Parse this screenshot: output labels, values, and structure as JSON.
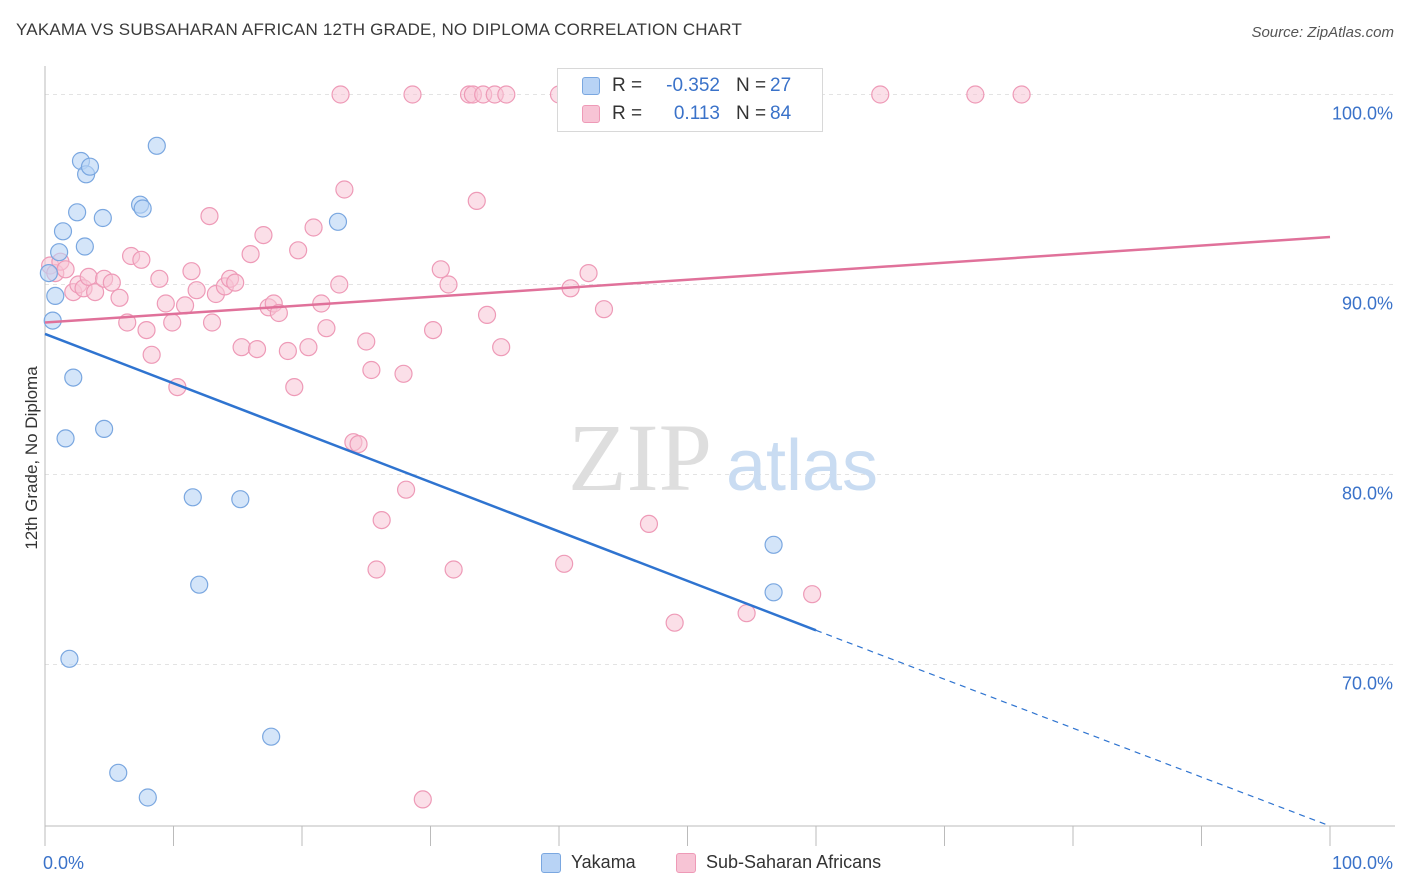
{
  "title": "YAKAMA VS SUBSAHARAN AFRICAN 12TH GRADE, NO DIPLOMA CORRELATION CHART",
  "source": "Source: ZipAtlas.com",
  "watermark": {
    "zip": "ZIP",
    "atlas": "atlas"
  },
  "colors": {
    "yakama_fill": "#b8d3f5",
    "yakama_stroke": "#7aa7e0",
    "yakama_line": "#2f74d0",
    "ssa_fill": "#f7c4d5",
    "ssa_stroke": "#ee9ab7",
    "ssa_line": "#e0719a",
    "value_text": "#3a72c9",
    "grid": "#e3e3e3"
  },
  "legend": {
    "rows": [
      {
        "r_label": "R =",
        "r_value": "-0.352",
        "n_label": "N =",
        "n_value": "27"
      },
      {
        "r_label": "R =",
        "r_value": "0.113",
        "n_label": "N =",
        "n_value": "84"
      }
    ]
  },
  "bottom_legend": [
    "Yakama",
    "Sub-Saharan Africans"
  ],
  "chart_data": {
    "type": "scatter",
    "title": "YAKAMA VS SUBSAHARAN AFRICAN 12TH GRADE, NO DIPLOMA CORRELATION CHART",
    "xlabel": "",
    "ylabel": "12th Grade, No Diploma",
    "xlim": [
      0,
      100
    ],
    "ylim": [
      61.5,
      101.5
    ],
    "x_tick_labels": [
      "0.0%",
      "100.0%"
    ],
    "y_tick_values": [
      70,
      80,
      90,
      100
    ],
    "y_tick_labels": [
      "70.0%",
      "80.0%",
      "90.0%",
      "100.0%"
    ],
    "grid": true,
    "series": [
      {
        "name": "Yakama",
        "R": -0.352,
        "N": 27,
        "trend": {
          "x0": 0,
          "y0": 87.4,
          "x1": 60,
          "y1": 71.8,
          "dashed_to_x": 100,
          "dashed_to_y": 61.5
        },
        "points": [
          [
            0.3,
            90.6
          ],
          [
            0.6,
            88.1
          ],
          [
            0.8,
            89.4
          ],
          [
            1.1,
            91.7
          ],
          [
            1.4,
            92.8
          ],
          [
            1.6,
            81.9
          ],
          [
            2.2,
            85.1
          ],
          [
            2.5,
            93.8
          ],
          [
            2.8,
            96.5
          ],
          [
            3.1,
            92.0
          ],
          [
            3.2,
            95.8
          ],
          [
            3.5,
            96.2
          ],
          [
            4.5,
            93.5
          ],
          [
            4.6,
            82.4
          ],
          [
            5.7,
            64.3
          ],
          [
            7.4,
            94.2
          ],
          [
            7.6,
            94.0
          ],
          [
            8.0,
            63.0
          ],
          [
            8.7,
            97.3
          ],
          [
            11.5,
            78.8
          ],
          [
            12.0,
            74.2
          ],
          [
            15.2,
            78.7
          ],
          [
            17.6,
            66.2
          ],
          [
            22.8,
            93.3
          ],
          [
            1.9,
            70.3
          ],
          [
            56.7,
            73.8
          ],
          [
            56.7,
            76.3
          ]
        ]
      },
      {
        "name": "Sub-Saharan Africans",
        "R": 0.113,
        "N": 84,
        "trend": {
          "x0": 0,
          "y0": 88.0,
          "x1": 100,
          "y1": 92.5
        },
        "points": [
          [
            0.4,
            91.0
          ],
          [
            0.8,
            90.6
          ],
          [
            1.2,
            91.2
          ],
          [
            1.6,
            90.8
          ],
          [
            2.2,
            89.6
          ],
          [
            2.6,
            90.0
          ],
          [
            3.0,
            89.8
          ],
          [
            3.4,
            90.4
          ],
          [
            3.9,
            89.6
          ],
          [
            4.6,
            90.3
          ],
          [
            5.2,
            90.1
          ],
          [
            5.8,
            89.3
          ],
          [
            6.4,
            88.0
          ],
          [
            6.7,
            91.5
          ],
          [
            7.5,
            91.3
          ],
          [
            7.9,
            87.6
          ],
          [
            8.3,
            86.3
          ],
          [
            8.9,
            90.3
          ],
          [
            9.4,
            89.0
          ],
          [
            9.9,
            88.0
          ],
          [
            10.3,
            84.6
          ],
          [
            10.9,
            88.9
          ],
          [
            11.4,
            90.7
          ],
          [
            11.8,
            89.7
          ],
          [
            12.8,
            93.6
          ],
          [
            13.0,
            88.0
          ],
          [
            13.3,
            89.5
          ],
          [
            14.0,
            89.9
          ],
          [
            14.4,
            90.3
          ],
          [
            14.8,
            90.1
          ],
          [
            15.3,
            86.7
          ],
          [
            16.0,
            91.6
          ],
          [
            16.5,
            86.6
          ],
          [
            17.0,
            92.6
          ],
          [
            17.4,
            88.8
          ],
          [
            17.8,
            89.0
          ],
          [
            18.2,
            88.5
          ],
          [
            18.9,
            86.5
          ],
          [
            19.4,
            84.6
          ],
          [
            19.7,
            91.8
          ],
          [
            20.5,
            86.7
          ],
          [
            20.9,
            93.0
          ],
          [
            21.5,
            89.0
          ],
          [
            21.9,
            87.7
          ],
          [
            22.9,
            90.0
          ],
          [
            23.0,
            100.0
          ],
          [
            23.3,
            95.0
          ],
          [
            24.0,
            81.7
          ],
          [
            24.4,
            81.6
          ],
          [
            25.0,
            87.0
          ],
          [
            25.4,
            85.5
          ],
          [
            25.8,
            75.0
          ],
          [
            26.2,
            77.6
          ],
          [
            27.9,
            85.3
          ],
          [
            28.1,
            79.2
          ],
          [
            28.6,
            100.0
          ],
          [
            29.4,
            62.9
          ],
          [
            30.2,
            87.6
          ],
          [
            30.8,
            90.8
          ],
          [
            31.4,
            90.0
          ],
          [
            31.8,
            75.0
          ],
          [
            33.0,
            100.0
          ],
          [
            33.3,
            100.0
          ],
          [
            33.6,
            94.4
          ],
          [
            34.1,
            100.0
          ],
          [
            34.4,
            88.4
          ],
          [
            35.0,
            100.0
          ],
          [
            35.5,
            86.7
          ],
          [
            35.9,
            100.0
          ],
          [
            40.0,
            100.0
          ],
          [
            40.4,
            75.3
          ],
          [
            40.9,
            89.8
          ],
          [
            42.3,
            90.6
          ],
          [
            43.5,
            88.7
          ],
          [
            47.0,
            77.4
          ],
          [
            48.1,
            100.0
          ],
          [
            49.0,
            72.2
          ],
          [
            54.0,
            100.0
          ],
          [
            54.6,
            72.7
          ],
          [
            57.3,
            100.0
          ],
          [
            59.7,
            73.7
          ],
          [
            65.0,
            100.0
          ],
          [
            72.4,
            100.0
          ],
          [
            76.0,
            100.0
          ]
        ]
      }
    ]
  }
}
